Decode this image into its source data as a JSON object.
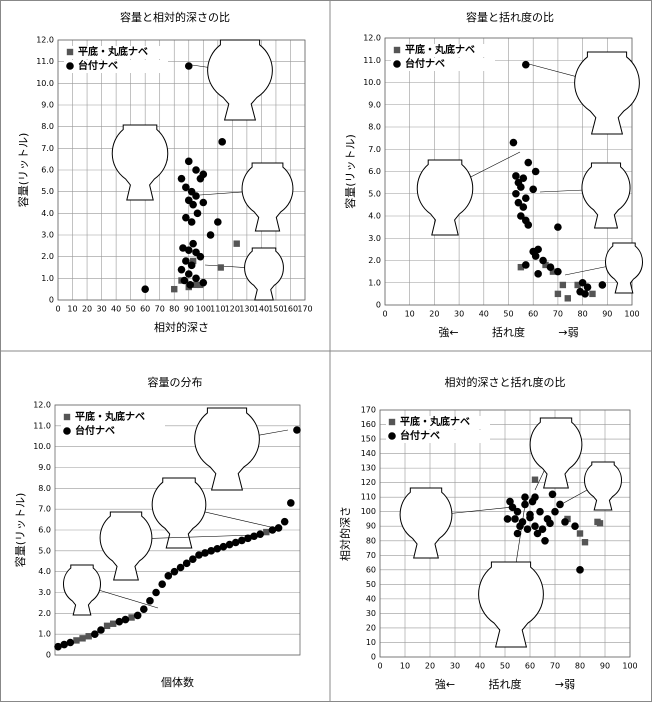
{
  "chart_data": [
    {
      "type": "scatter",
      "title": "容量と相対的深さの比",
      "xlabel": "相対的深さ",
      "ylabel": "容量(リットル)",
      "xlim": [
        0,
        170
      ],
      "xticks": [
        0,
        10,
        20,
        30,
        40,
        50,
        60,
        70,
        80,
        90,
        100,
        110,
        120,
        130,
        140,
        150,
        160,
        170
      ],
      "ylim": [
        0,
        12
      ],
      "yticks": [
        0,
        {
          "value": 1,
          "label": "1.0"
        },
        {
          "value": 2,
          "label": "2.0"
        },
        {
          "value": 3,
          "label": "3.0"
        },
        {
          "value": 4,
          "label": "4.0"
        },
        {
          "value": 5,
          "label": "5.0"
        },
        {
          "value": 6,
          "label": "6.0"
        },
        {
          "value": 7,
          "label": "7.0"
        },
        {
          "value": 8,
          "label": "8.0"
        },
        {
          "value": 9,
          "label": "9.0"
        },
        {
          "value": 10,
          "label": "10.0"
        },
        {
          "value": 11,
          "label": "11.0"
        },
        {
          "value": 12,
          "label": "12.0"
        }
      ],
      "grid": true,
      "series": [
        {
          "name": "平底・丸底ナベ",
          "marker": "square",
          "color": "#555555",
          "x": [
            80,
            85,
            95,
            98,
            123,
            112,
            93,
            90
          ],
          "values": [
            0.5,
            0.9,
            0.7,
            0.7,
            2.6,
            1.5,
            1.8,
            0.6
          ]
        },
        {
          "name": "台付ナベ",
          "marker": "circle",
          "color": "#000000",
          "x": [
            60,
            90,
            113,
            90,
            95,
            100,
            85,
            88,
            92,
            95,
            98,
            90,
            93,
            96,
            88,
            92,
            100,
            105,
            86,
            90,
            95,
            98,
            88,
            92,
            85,
            90,
            95,
            100,
            110,
            93,
            87,
            91
          ],
          "values": [
            0.5,
            10.8,
            7.3,
            6.4,
            6.0,
            5.8,
            5.6,
            5.2,
            5.0,
            4.8,
            5.6,
            4.6,
            4.4,
            4.0,
            3.8,
            3.6,
            4.5,
            3.0,
            2.4,
            2.3,
            2.2,
            2.0,
            1.8,
            1.6,
            1.4,
            1.2,
            1.0,
            0.8,
            3.6,
            2.6,
            0.9,
            0.7
          ]
        }
      ]
    },
    {
      "type": "scatter",
      "title": "容量と括れ度の比",
      "xlabel": "括れ度",
      "xlabel_left": "強←",
      "xlabel_right": "→弱",
      "ylabel": "容量(リットル)",
      "xlim": [
        0,
        100
      ],
      "xticks": [
        0,
        10,
        20,
        30,
        40,
        50,
        60,
        70,
        80,
        90,
        100
      ],
      "ylim": [
        0,
        12
      ],
      "yticks": [
        0,
        {
          "value": 1,
          "label": "1.0"
        },
        {
          "value": 2,
          "label": "2.0"
        },
        {
          "value": 3,
          "label": "3.0"
        },
        {
          "value": 4,
          "label": "4.0"
        },
        {
          "value": 5,
          "label": "5.0"
        },
        {
          "value": 6,
          "label": "6.0"
        },
        {
          "value": 7,
          "label": "7.0"
        },
        {
          "value": 8,
          "label": "8.0"
        },
        {
          "value": 9,
          "label": "9.0"
        },
        {
          "value": 10,
          "label": "10.0"
        },
        {
          "value": 11,
          "label": "11.0"
        },
        {
          "value": 12,
          "label": "12.0"
        }
      ],
      "grid": true,
      "series": [
        {
          "name": "平底・丸底ナベ",
          "marker": "square",
          "color": "#555555",
          "x": [
            55,
            65,
            68,
            70,
            78,
            84,
            72,
            74
          ],
          "values": [
            1.7,
            1.8,
            1.5,
            0.5,
            0.9,
            0.5,
            0.9,
            0.3
          ]
        },
        {
          "name": "台付ナベ",
          "marker": "circle",
          "color": "#000000",
          "x": [
            57,
            52,
            58,
            61,
            53,
            56,
            54,
            55,
            60,
            53,
            57,
            54,
            56,
            55,
            57,
            58,
            70,
            62,
            60,
            61,
            64,
            57,
            67,
            70,
            62,
            80,
            82,
            79,
            88,
            81
          ],
          "values": [
            10.8,
            7.3,
            6.4,
            6.0,
            5.8,
            5.7,
            5.5,
            5.3,
            5.2,
            5.0,
            4.8,
            4.6,
            4.4,
            4.0,
            3.8,
            3.6,
            3.5,
            2.5,
            2.4,
            2.2,
            2.0,
            1.8,
            1.7,
            1.5,
            1.4,
            1.0,
            0.8,
            0.6,
            0.9,
            0.5
          ]
        }
      ]
    },
    {
      "type": "dot-series",
      "title": "容量の分布",
      "xlabel": "個体数",
      "ylabel": "容量(リットル)",
      "ylim": [
        0,
        12
      ],
      "yticks": [
        0,
        {
          "value": 1,
          "label": "1.0"
        },
        {
          "value": 2,
          "label": "2.0"
        },
        {
          "value": 3,
          "label": "3.0"
        },
        {
          "value": 4,
          "label": "4.0"
        },
        {
          "value": 5,
          "label": "5.0"
        },
        {
          "value": 6,
          "label": "6.0"
        },
        {
          "value": 7,
          "label": "7.0"
        },
        {
          "value": 8,
          "label": "8.0"
        },
        {
          "value": 9,
          "label": "9.0"
        },
        {
          "value": 10,
          "label": "10.0"
        },
        {
          "value": 11,
          "label": "11.0"
        },
        {
          "value": 12,
          "label": "12.0"
        }
      ],
      "grid": true,
      "series": [
        {
          "name": "平底・丸底ナベ",
          "marker": "square",
          "color": "#555555",
          "values": [
            null,
            null,
            null,
            0.7,
            0.8,
            0.9,
            null,
            null,
            1.4,
            1.5,
            null,
            null,
            1.8,
            null,
            null,
            null,
            null,
            null,
            null,
            null,
            null,
            null,
            null,
            null,
            null,
            null,
            null,
            null,
            null,
            null,
            null,
            null,
            null,
            null,
            5.9,
            null,
            null,
            null,
            null,
            null
          ]
        },
        {
          "name": "台付ナベ",
          "marker": "circle",
          "color": "#000000",
          "values": [
            0.4,
            0.5,
            0.6,
            null,
            null,
            null,
            1.0,
            1.2,
            null,
            null,
            1.6,
            1.7,
            null,
            1.9,
            2.2,
            2.6,
            3.0,
            3.4,
            3.8,
            4.0,
            4.2,
            4.4,
            4.6,
            4.8,
            4.9,
            5.0,
            5.1,
            5.2,
            5.3,
            5.4,
            5.5,
            5.6,
            5.7,
            5.8,
            null,
            6.0,
            6.1,
            6.4,
            7.3,
            10.8
          ]
        }
      ]
    },
    {
      "type": "scatter",
      "title": "相対的深さと括れ度の比",
      "xlabel": "括れ度",
      "xlabel_left": "強←",
      "xlabel_right": "→弱",
      "ylabel": "相対的深さ",
      "xlim": [
        0,
        100
      ],
      "xticks": [
        0,
        10,
        20,
        30,
        40,
        50,
        60,
        70,
        80,
        90,
        100
      ],
      "ylim": [
        0,
        170
      ],
      "yticks": [
        0,
        10,
        20,
        30,
        40,
        50,
        60,
        70,
        80,
        90,
        100,
        110,
        120,
        130,
        140,
        150,
        160,
        170
      ],
      "grid": true,
      "series": [
        {
          "name": "平底・丸底ナベ",
          "marker": "square",
          "color": "#555555",
          "x": [
            62,
            80,
            82,
            87,
            88,
            75
          ],
          "values": [
            122,
            85,
            79,
            93,
            92,
            95
          ]
        },
        {
          "name": "台付ナベ",
          "marker": "circle",
          "color": "#000000",
          "x": [
            52,
            55,
            58,
            60,
            62,
            54,
            56,
            65,
            68,
            70,
            53,
            57,
            60,
            63,
            66,
            72,
            55,
            58,
            62,
            67,
            78,
            80,
            64,
            59,
            51,
            69,
            74,
            61
          ],
          "values": [
            107,
            100,
            105,
            98,
            110,
            95,
            90,
            88,
            92,
            100,
            103,
            93,
            96,
            85,
            80,
            105,
            85,
            110,
            90,
            95,
            90,
            60,
            100,
            88,
            95,
            112,
            93,
            107
          ]
        }
      ]
    }
  ]
}
